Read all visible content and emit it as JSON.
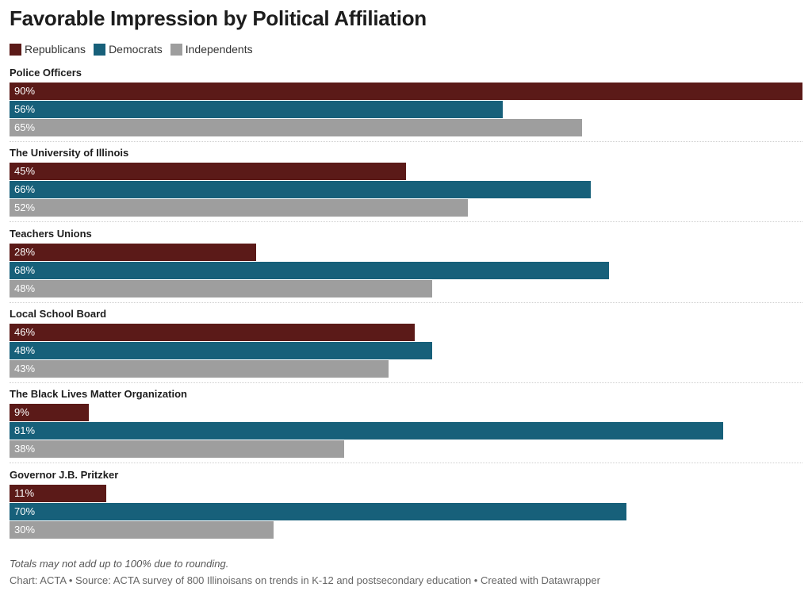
{
  "chart_data": {
    "type": "bar",
    "title": "Favorable Impression by Political Affiliation",
    "categories": [
      "Police Officers",
      "The University of Illinois",
      "Teachers Unions",
      "Local School Board",
      "The Black Lives Matter Organization",
      "Governor J.B. Pritzker"
    ],
    "series": [
      {
        "name": "Republicans",
        "color": "#5b1a18",
        "values": [
          90,
          45,
          28,
          46,
          9,
          11
        ],
        "labels": [
          "90%",
          "45%",
          "28%",
          "46%",
          "9%",
          "11%"
        ]
      },
      {
        "name": "Democrats",
        "color": "#17607a",
        "values": [
          56,
          66,
          68,
          48,
          81,
          70
        ],
        "labels": [
          "56%",
          "66%",
          "68%",
          "48%",
          "81%",
          "70%"
        ]
      },
      {
        "name": "Independents",
        "color": "#9e9e9e",
        "values": [
          65,
          52,
          48,
          43,
          38,
          30
        ],
        "labels": [
          "65%",
          "52%",
          "48%",
          "43%",
          "38%",
          "30%"
        ]
      }
    ],
    "xlim": [
      0,
      90
    ],
    "orientation": "horizontal",
    "legend_position": "top-left",
    "grid": false
  },
  "note": "Totals may not add up to 100% due to rounding.",
  "footer": "Chart: ACTA • Source: ACTA survey of 800 Illinoisans on trends in K-12 and postsecondary education • Created with Datawrapper"
}
